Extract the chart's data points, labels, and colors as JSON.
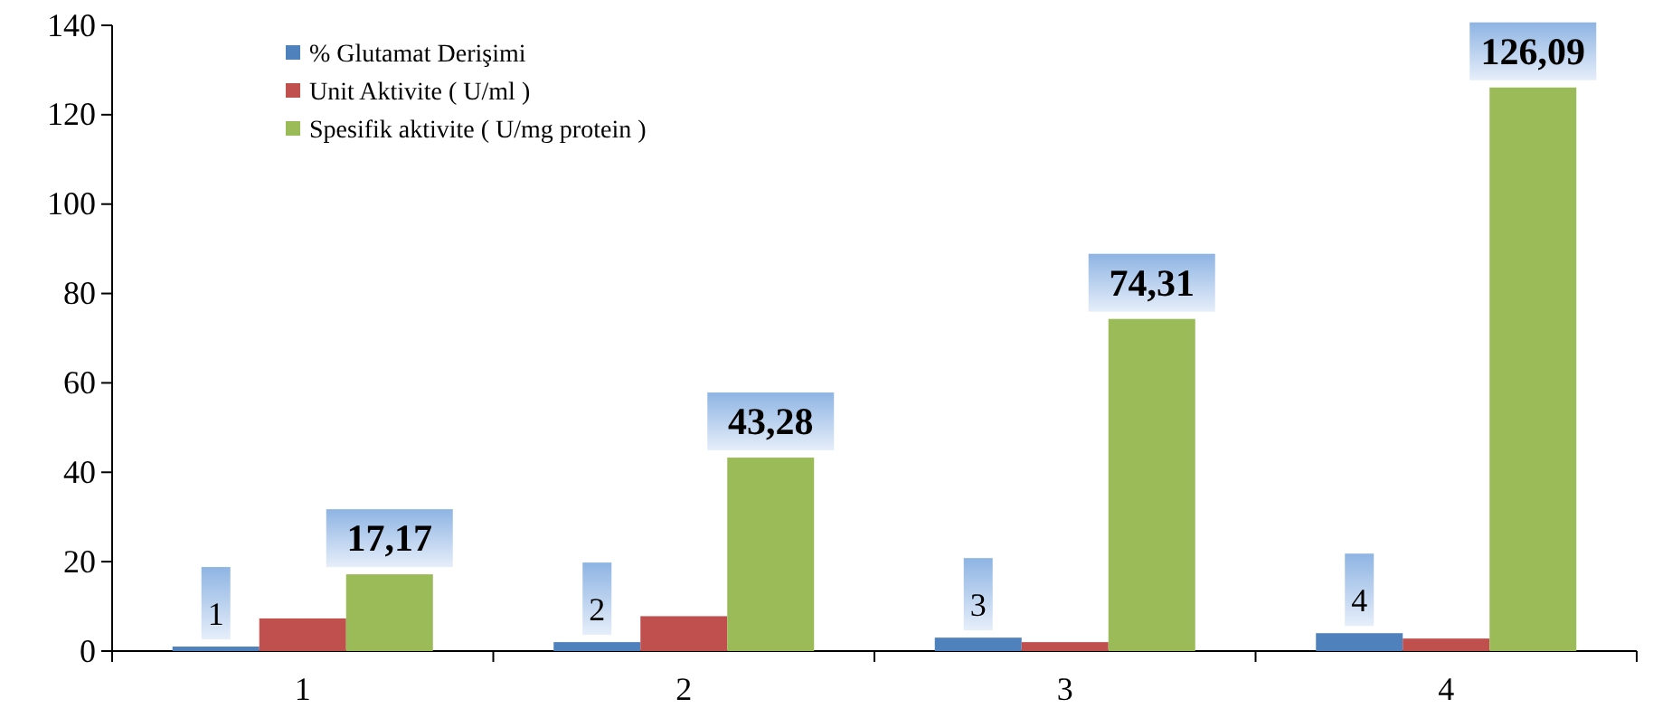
{
  "chart_data": {
    "type": "bar",
    "categories": [
      "1",
      "2",
      "3",
      "4"
    ],
    "series": [
      {
        "name": "% Glutamat Derişimi",
        "color": "#4f81bd",
        "values": [
          1,
          2,
          3,
          4
        ],
        "value_labels": [
          "1",
          "2",
          "3",
          "4"
        ]
      },
      {
        "name": "Unit Aktivite ( U/ml )",
        "color": "#c0504d",
        "values": [
          7.3,
          7.8,
          2,
          2.8
        ]
      },
      {
        "name": "Spesifik aktivite ( U/mg protein )",
        "color": "#9bbb59",
        "values": [
          17.17,
          43.28,
          74.31,
          126.09
        ],
        "value_labels": [
          "17,17",
          "43,28",
          "74,31",
          "126,09"
        ]
      }
    ],
    "ylim": [
      0,
      140
    ],
    "yticks": [
      0,
      20,
      40,
      60,
      80,
      100,
      120,
      140
    ],
    "grid": false,
    "legend": "top left"
  }
}
